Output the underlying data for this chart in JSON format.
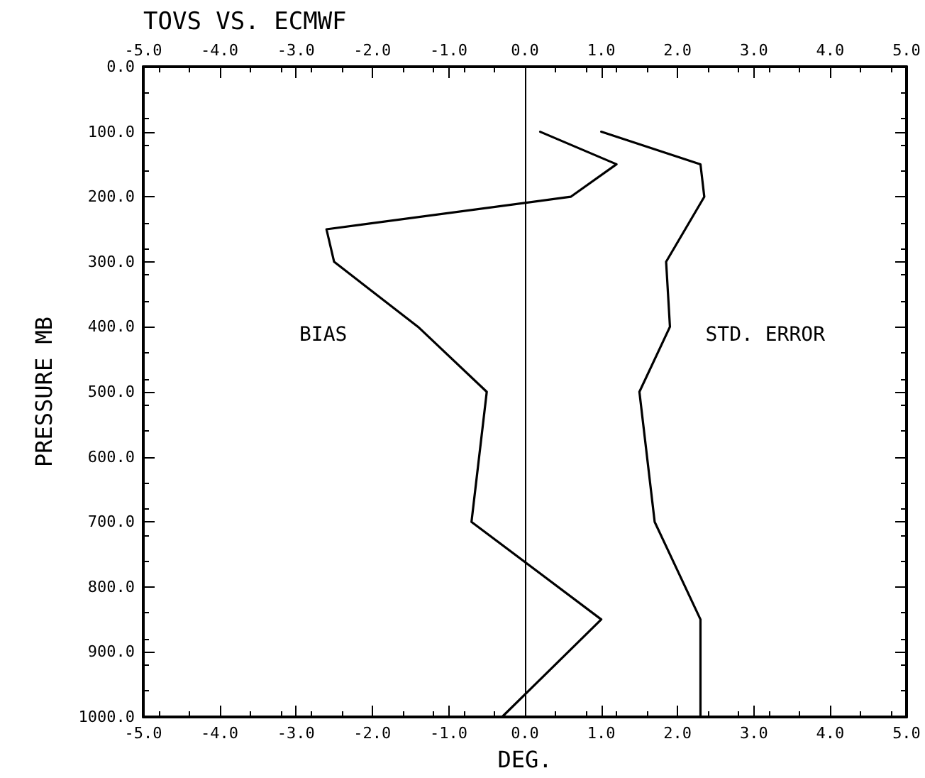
{
  "chart_data": {
    "type": "line",
    "title": "TOVS VS. ECMWF",
    "xlabel": "DEG.",
    "ylabel": "PRESSURE MB",
    "series": [
      {
        "name": "BIAS",
        "color": "#000000",
        "x": [
          0.2,
          1.2,
          0.6,
          -2.6,
          -2.5,
          -1.4,
          -0.5,
          -0.7,
          1.0,
          -0.3
        ],
        "values": [
          100,
          150,
          200,
          250,
          300,
          400,
          500,
          700,
          850,
          1000
        ]
      },
      {
        "name": "STD. ERROR",
        "color": "#000000",
        "x": [
          1.0,
          2.3,
          2.35,
          1.85,
          1.9,
          1.5,
          1.7,
          2.3,
          2.3
        ],
        "values": [
          100,
          150,
          200,
          300,
          400,
          500,
          700,
          850,
          1000
        ]
      }
    ],
    "xlim": [
      -5,
      5
    ],
    "xticks": [
      {
        "value": -5,
        "label": "-5.0"
      },
      {
        "value": -4,
        "label": "-4.0"
      },
      {
        "value": -3,
        "label": "-3.0"
      },
      {
        "value": -2,
        "label": "-2.0"
      },
      {
        "value": -1,
        "label": "-1.0"
      },
      {
        "value": 0,
        "label": "0.0"
      },
      {
        "value": 1,
        "label": "1.0"
      },
      {
        "value": 2,
        "label": "2.0"
      },
      {
        "value": 3,
        "label": "3.0"
      },
      {
        "value": 4,
        "label": "4.0"
      },
      {
        "value": 5,
        "label": "5.0"
      }
    ],
    "x2lim": [
      -5,
      5
    ],
    "x2ticks": [
      {
        "value": -5,
        "label": "-5.0"
      },
      {
        "value": -4,
        "label": "-4.0"
      },
      {
        "value": -3,
        "label": "-3.0"
      },
      {
        "value": -2,
        "label": "-2.0"
      },
      {
        "value": -1,
        "label": "-1.0"
      },
      {
        "value": 0,
        "label": "0.0"
      },
      {
        "value": 1,
        "label": "1.0"
      },
      {
        "value": 2,
        "label": "2.0"
      },
      {
        "value": 3,
        "label": "3.0"
      },
      {
        "value": 4,
        "label": "4.0"
      },
      {
        "value": 5,
        "label": "5.0"
      }
    ],
    "ylim": [
      1000,
      0
    ],
    "yticks": [
      {
        "value": 0,
        "label": "0.0"
      },
      {
        "value": 100,
        "label": "100.0"
      },
      {
        "value": 200,
        "label": "200.0"
      },
      {
        "value": 300,
        "label": "300.0"
      },
      {
        "value": 400,
        "label": "400.0"
      },
      {
        "value": 500,
        "label": "500.0"
      },
      {
        "value": 600,
        "label": "600.0"
      },
      {
        "value": 700,
        "label": "700.0"
      },
      {
        "value": 800,
        "label": "800.0"
      },
      {
        "value": 900,
        "label": "900.0"
      },
      {
        "value": 1000,
        "label": "1000.0"
      }
    ],
    "ref_lines": [
      {
        "axis": "x",
        "value": 0,
        "color": "#000000",
        "line_style": "solid"
      }
    ],
    "grid": false,
    "legend": false,
    "marker": "none",
    "line_style": "solid"
  }
}
